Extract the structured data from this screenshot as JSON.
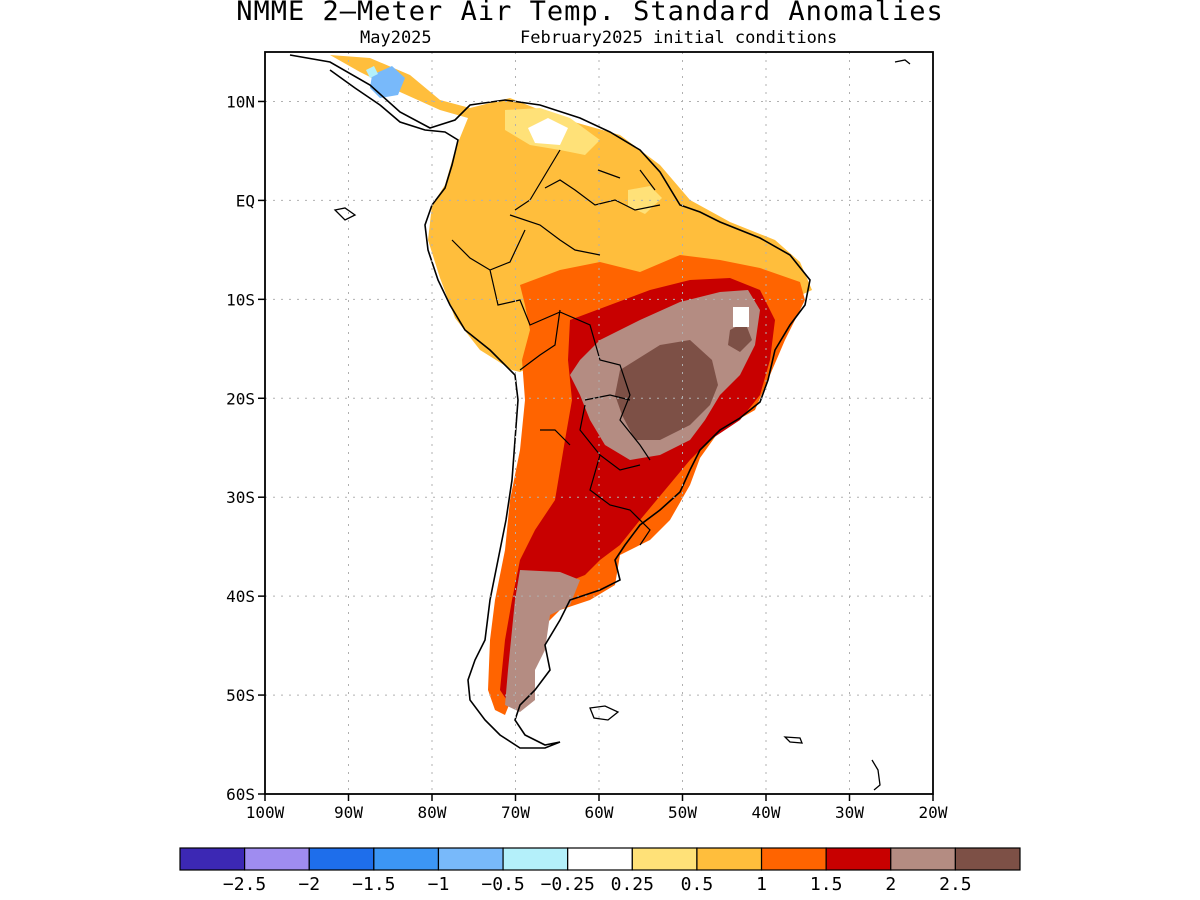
{
  "title": "NMME 2–Meter Air Temp. Standard Anomalies",
  "subtitle_left": "May2025",
  "subtitle_right": "February2025 initial conditions",
  "map": {
    "lat_range": [
      -60,
      15
    ],
    "lon_range": [
      -100,
      -20
    ],
    "lat_ticks": [
      {
        "value": 10,
        "label": "10N"
      },
      {
        "value": 0,
        "label": "EQ"
      },
      {
        "value": -10,
        "label": "10S"
      },
      {
        "value": -20,
        "label": "20S"
      },
      {
        "value": -30,
        "label": "30S"
      },
      {
        "value": -40,
        "label": "40S"
      },
      {
        "value": -50,
        "label": "50S"
      },
      {
        "value": -60,
        "label": "60S"
      }
    ],
    "lon_ticks": [
      {
        "value": -100,
        "label": "100W"
      },
      {
        "value": -90,
        "label": "90W"
      },
      {
        "value": -80,
        "label": "80W"
      },
      {
        "value": -70,
        "label": "70W"
      },
      {
        "value": -60,
        "label": "60W"
      },
      {
        "value": -50,
        "label": "50W"
      },
      {
        "value": -40,
        "label": "40W"
      },
      {
        "value": -30,
        "label": "30W"
      },
      {
        "value": -20,
        "label": "20W"
      }
    ]
  },
  "colorbar": {
    "colors": [
      "#3c28b4",
      "#9f8cf0",
      "#1e6eeb",
      "#3c96f5",
      "#78b9fa",
      "#b4f0fa",
      "#ffffff",
      "#ffe178",
      "#ffbe3c",
      "#ff6400",
      "#c80000",
      "#b48c82",
      "#7d5046"
    ],
    "labels": [
      "−2.5",
      "−2",
      "−1.5",
      "−1",
      "−0.5",
      "−0.25",
      "0.25",
      "0.5",
      "1",
      "1.5",
      "2",
      "2.5"
    ]
  }
}
